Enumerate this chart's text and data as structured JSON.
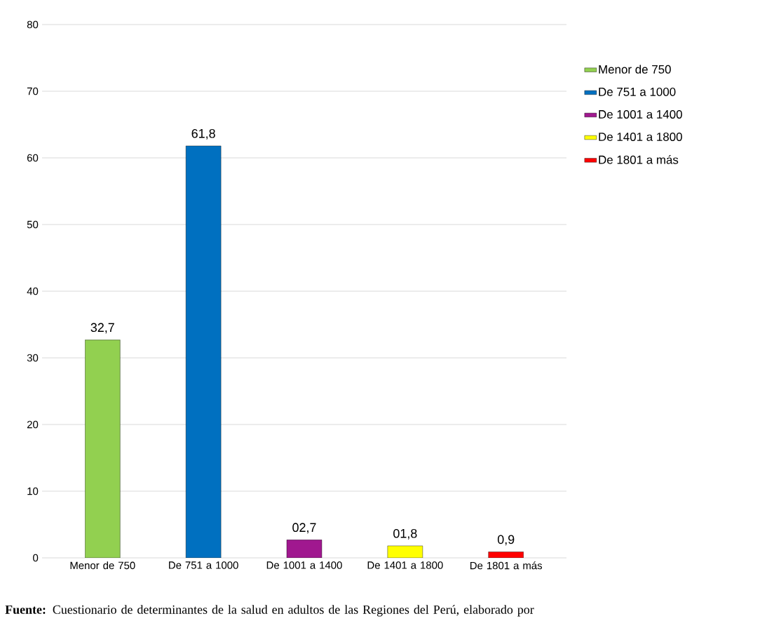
{
  "chart_data": {
    "type": "bar",
    "categories": [
      "Menor de 750",
      "De 751 a 1000",
      "De 1001 a 1400",
      "De 1401 a 1800",
      "De 1801 a más"
    ],
    "series": [
      {
        "name": "Menor de 750",
        "color": "#92d050",
        "values": [
          32.7,
          null,
          null,
          null,
          null
        ],
        "value_labels": [
          "32,7",
          null,
          null,
          null,
          null
        ]
      },
      {
        "name": "De 751 a 1000",
        "color": "#0070c0",
        "values": [
          null,
          61.8,
          null,
          null,
          null
        ],
        "value_labels": [
          null,
          "61,8",
          null,
          null,
          null
        ]
      },
      {
        "name": "De 1001 a 1400",
        "color": "#a0188f",
        "values": [
          null,
          null,
          2.7,
          null,
          null
        ],
        "value_labels": [
          null,
          null,
          "02,7",
          null,
          null
        ]
      },
      {
        "name": "De 1401 a 1800",
        "color": "#ffff00",
        "values": [
          null,
          null,
          null,
          1.8,
          null
        ],
        "value_labels": [
          null,
          null,
          null,
          "01,8",
          null
        ]
      },
      {
        "name": "De 1801 a más",
        "color": "#ff0000",
        "values": [
          null,
          null,
          null,
          null,
          0.9
        ],
        "value_labels": [
          null,
          null,
          null,
          null,
          "0,9"
        ]
      }
    ],
    "ylim": [
      0,
      80
    ],
    "yticks": [
      0,
      10,
      20,
      30,
      40,
      50,
      60,
      70,
      80
    ],
    "grid": "y",
    "legend": "right",
    "annotations": [
      "**Fuente:** Cuestionario de determinantes de la salud en adultos de las Regiones del Perú, elaborado por"
    ]
  }
}
